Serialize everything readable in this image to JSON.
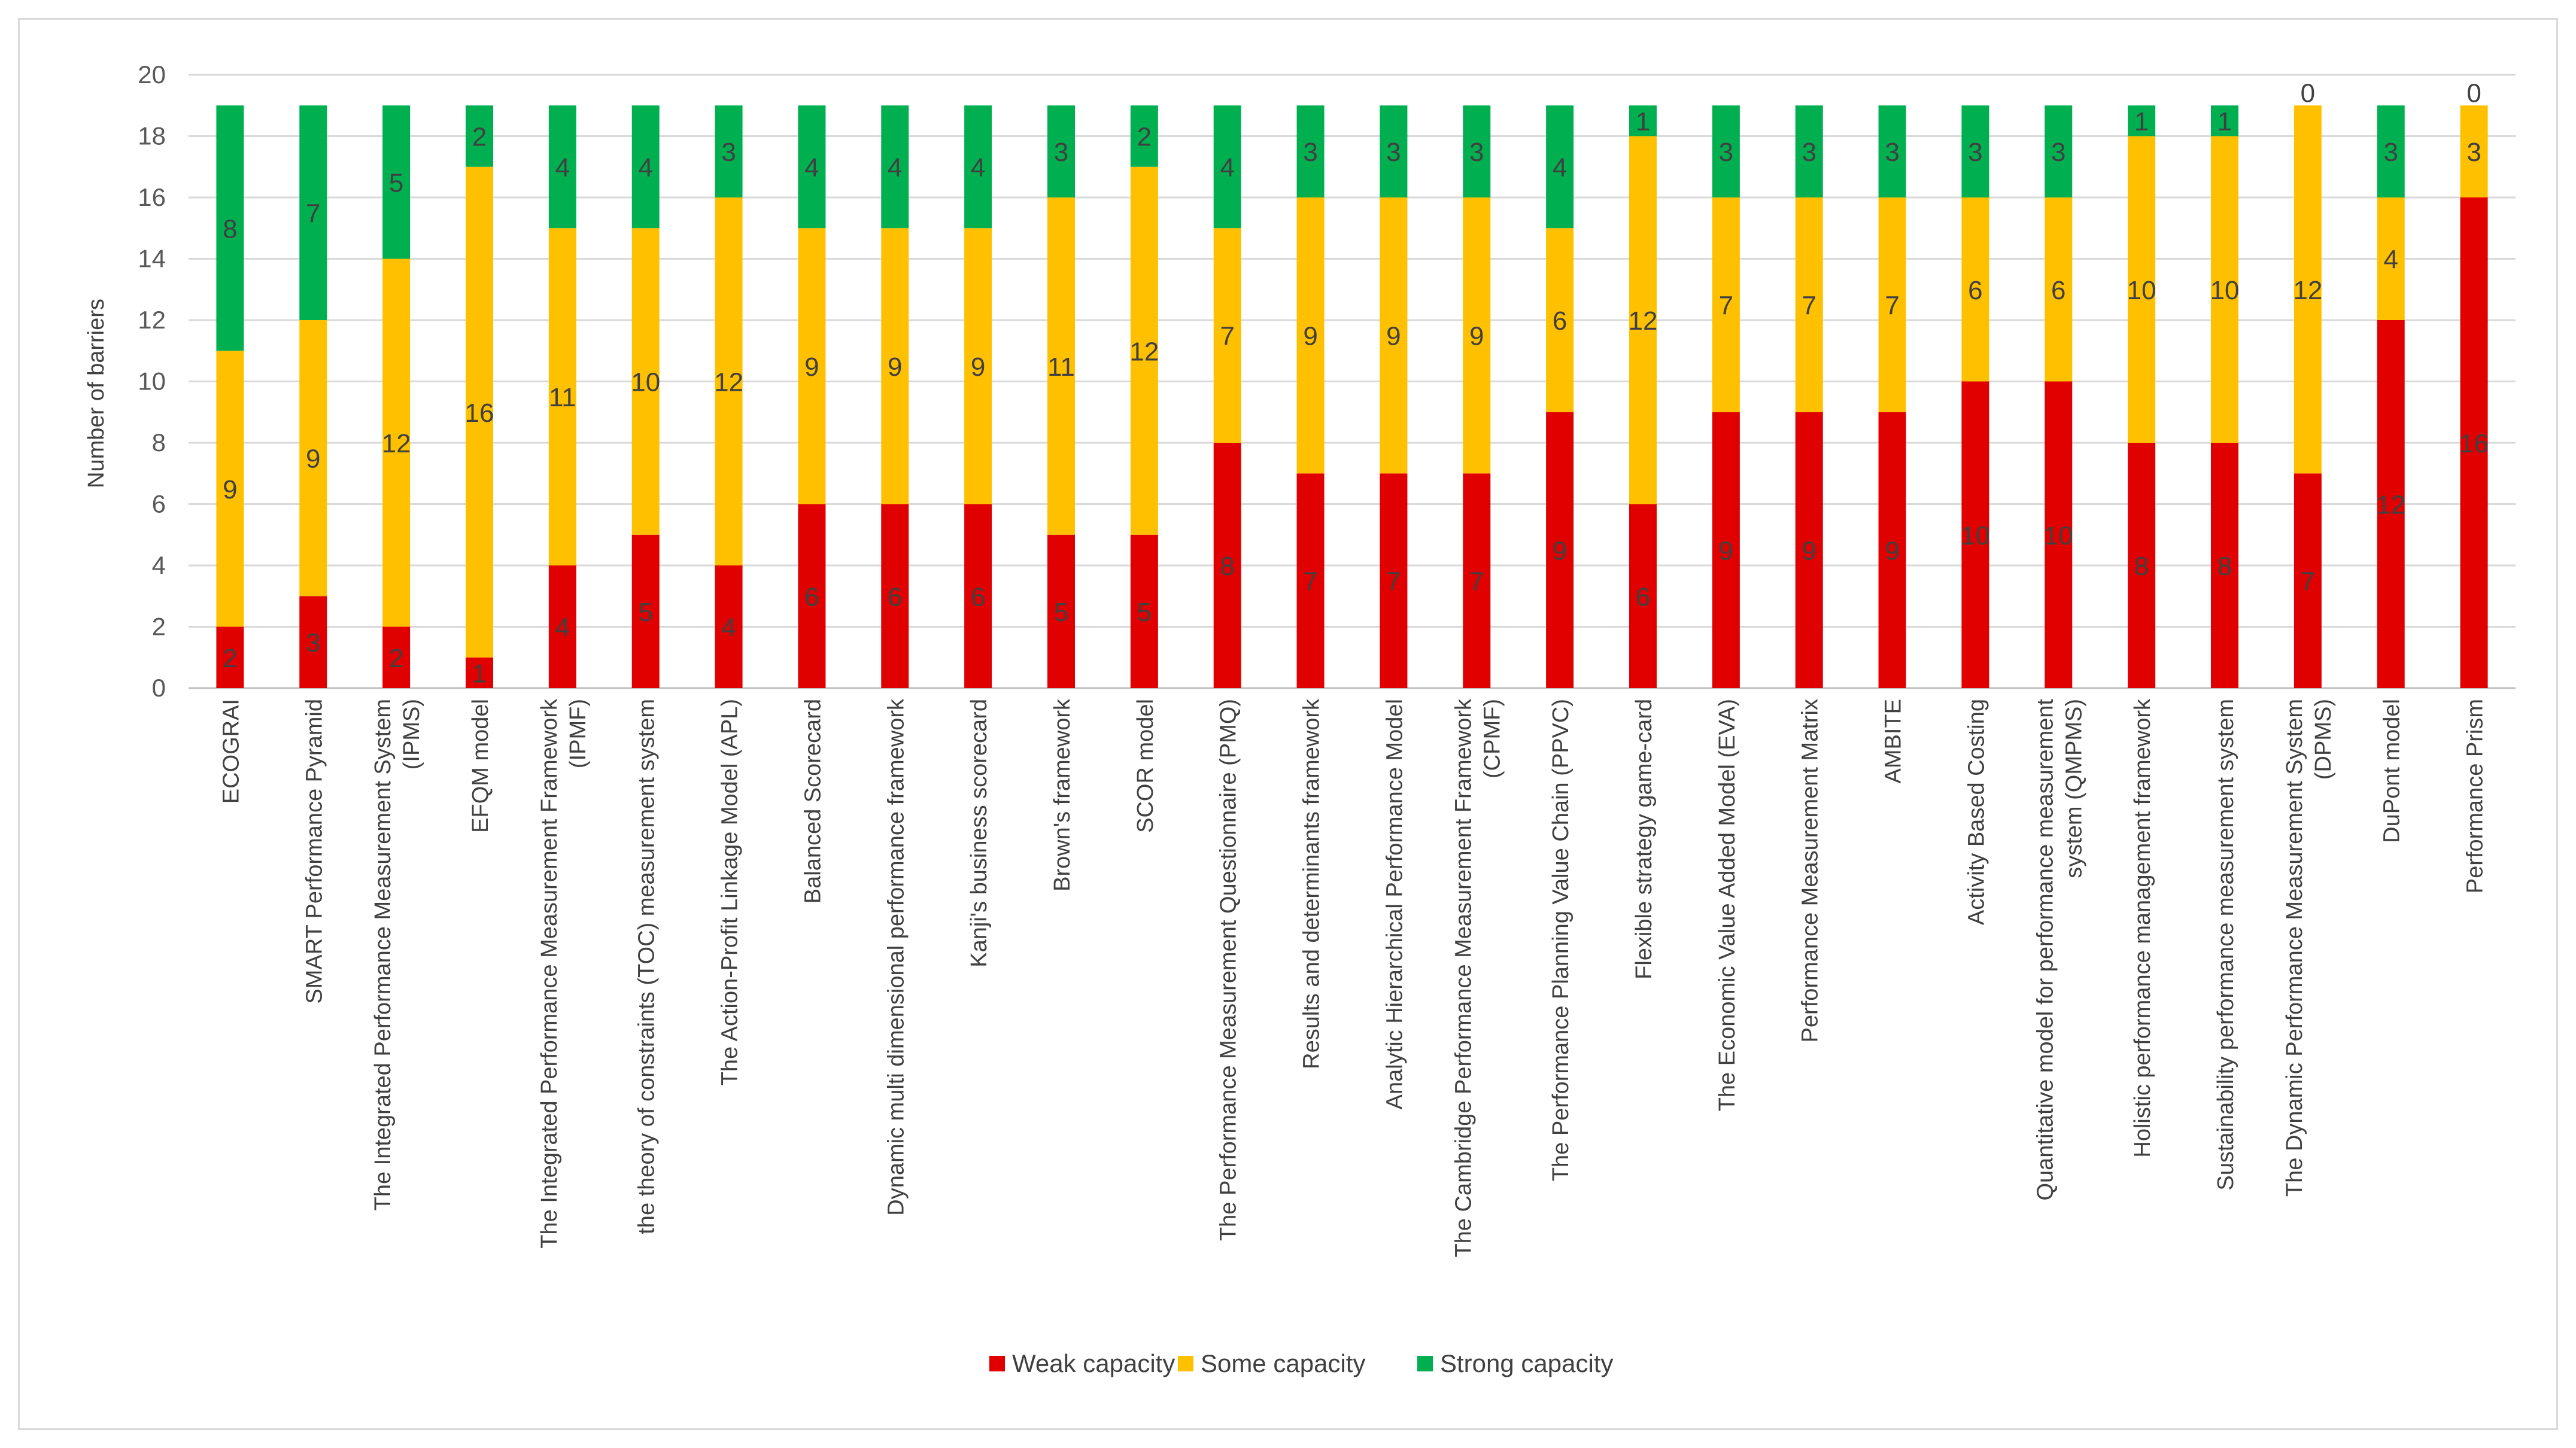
{
  "chart_data": {
    "type": "bar",
    "stacked": true,
    "title": "",
    "xlabel": "",
    "ylabel": "Number of barriers",
    "ylim": [
      0,
      20
    ],
    "ytick_step": 2,
    "grid": true,
    "legend_position": "bottom",
    "categories": [
      [
        "ECOGRAI"
      ],
      [
        "SMART Performance Pyramid"
      ],
      [
        "The Integrated Performance Measurement System",
        "(IPMS)"
      ],
      [
        "EFQM model"
      ],
      [
        "The Integrated Performance Measurement Framework",
        "(IPMF)"
      ],
      [
        "the theory of constraints (TOC) measurement system"
      ],
      [
        "The Action-Profit Linkage Model (APL)"
      ],
      [
        "Balanced Scorecard"
      ],
      [
        "Dynamic multi dimensional performance framework"
      ],
      [
        "Kanji's business scorecard"
      ],
      [
        "Brown's framework"
      ],
      [
        "SCOR model"
      ],
      [
        "The Performance Measurement Questionnaire (PMQ)"
      ],
      [
        "Results and determinants framework"
      ],
      [
        "Analytic Hierarchical Performance Model"
      ],
      [
        "The Cambridge Performance Measurement Framework",
        "(CPMF)"
      ],
      [
        "The Performance Planning Value Chain (PPVC)"
      ],
      [
        "Flexible strategy game-card"
      ],
      [
        "The Economic Value Added Model (EVA)"
      ],
      [
        "Performance Measurement Matrix"
      ],
      [
        "AMBITE"
      ],
      [
        "Activity Based Costing"
      ],
      [
        "Quantitative model for performance measurement",
        "system (QMPMS)"
      ],
      [
        "Holistic performance management framework"
      ],
      [
        "Sustainability performance measurement system"
      ],
      [
        "The Dynamic Performance Measurement System",
        "(DPMS)"
      ],
      [
        "DuPont model"
      ],
      [
        "Performance Prism"
      ]
    ],
    "series": [
      {
        "name": "Weak capacity",
        "color": "#e00000",
        "values": [
          2,
          3,
          2,
          1,
          4,
          5,
          4,
          6,
          6,
          6,
          5,
          5,
          8,
          7,
          7,
          7,
          9,
          6,
          9,
          9,
          9,
          10,
          10,
          8,
          8,
          7,
          12,
          16
        ]
      },
      {
        "name": "Some capacity",
        "color": "#ffc000",
        "values": [
          9,
          9,
          12,
          16,
          11,
          10,
          12,
          9,
          9,
          9,
          11,
          12,
          7,
          9,
          9,
          9,
          6,
          12,
          7,
          7,
          7,
          6,
          6,
          10,
          10,
          12,
          4,
          3
        ]
      },
      {
        "name": "Strong capacity",
        "color": "#00b050",
        "values": [
          8,
          7,
          5,
          2,
          4,
          4,
          3,
          4,
          4,
          4,
          3,
          2,
          4,
          3,
          3,
          3,
          4,
          1,
          3,
          3,
          3,
          3,
          3,
          1,
          1,
          0,
          3,
          0
        ]
      }
    ]
  }
}
